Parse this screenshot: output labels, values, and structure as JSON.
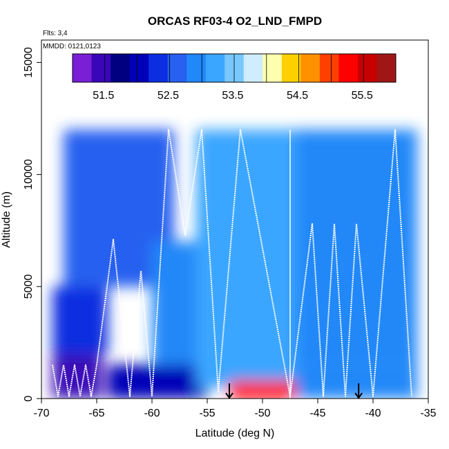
{
  "chart_data": {
    "type": "heatmap",
    "title": "ORCAS RF03-4 O2_LND_FMPD",
    "xlabel": "Latitude (deg N)",
    "ylabel": "Altitude (m)",
    "xlim": [
      -70,
      -35
    ],
    "ylim": [
      0,
      16000
    ],
    "xticks": [
      -70,
      -65,
      -60,
      -55,
      -50,
      -45,
      -40,
      -35
    ],
    "yticks": [
      0,
      5000,
      10000,
      15000
    ],
    "flights_label": "Flts: 3,4",
    "date_label": "MMDD: 0121,0123",
    "colorbar": {
      "range": [
        51.0,
        56.0
      ],
      "tick_values": [
        51.5,
        52.5,
        53.5,
        54.5,
        55.5
      ],
      "colors": [
        "#7a1fd6",
        "#3a07b8",
        "#000080",
        "#0000b8",
        "#0a2ee0",
        "#2860f0",
        "#2088f8",
        "#3aa6ff",
        "#78c8ff",
        "#d0ecff",
        "#ffffb0",
        "#ffd000",
        "#ff9000",
        "#ff4000",
        "#ff0000",
        "#c80000",
        "#a01616"
      ]
    },
    "markers": {
      "arrow_latitudes": [
        -53,
        -41.3
      ]
    },
    "regions": [
      {
        "lat": [
          -69,
          -64.5
        ],
        "alt": [
          0,
          2000
        ],
        "value": 51.3
      },
      {
        "lat": [
          -69,
          -64
        ],
        "alt": [
          2000,
          5000
        ],
        "value": 52.2
      },
      {
        "lat": [
          -68,
          -58
        ],
        "alt": [
          5000,
          12000
        ],
        "value": 52.7
      },
      {
        "lat": [
          -64,
          -55
        ],
        "alt": [
          0,
          1500
        ],
        "value": 52.1
      },
      {
        "lat": [
          -60,
          -56
        ],
        "alt": [
          1500,
          7000
        ],
        "value": 53.0
      },
      {
        "lat": [
          -56,
          -53
        ],
        "alt": [
          500,
          12000
        ],
        "value": 53.2
      },
      {
        "lat": [
          -53,
          -47
        ],
        "alt": [
          0,
          800
        ],
        "value": 55.2
      },
      {
        "lat": [
          -53,
          -47
        ],
        "alt": [
          800,
          12000
        ],
        "value": 53.1
      },
      {
        "lat": [
          -47,
          -36
        ],
        "alt": [
          0,
          1500
        ],
        "value": 52.8
      },
      {
        "lat": [
          -47,
          -36
        ],
        "alt": [
          1500,
          12000
        ],
        "value": 53.0
      }
    ],
    "flight_track": [
      [
        -69,
        1500
      ],
      [
        -68.5,
        100
      ],
      [
        -68,
        1500
      ],
      [
        -67.5,
        100
      ],
      [
        -67,
        1500
      ],
      [
        -66.5,
        100
      ],
      [
        -66,
        1500
      ],
      [
        -65.5,
        100
      ],
      [
        -65,
        1500
      ],
      [
        -63.5,
        7100
      ],
      [
        -62,
        100
      ],
      [
        -61,
        5700
      ],
      [
        -60,
        100
      ],
      [
        -58.5,
        12000
      ],
      [
        -57,
        7300
      ],
      [
        -55.5,
        12000
      ],
      [
        -54,
        300
      ],
      [
        -52,
        12000
      ],
      [
        -47.5,
        100
      ],
      [
        -45.5,
        7800
      ],
      [
        -44.5,
        100
      ],
      [
        -43.5,
        7800
      ],
      [
        -42.5,
        100
      ],
      [
        -41.5,
        7800
      ],
      [
        -40,
        100
      ],
      [
        -38,
        12000
      ],
      [
        -36.5,
        100
      ]
    ]
  }
}
